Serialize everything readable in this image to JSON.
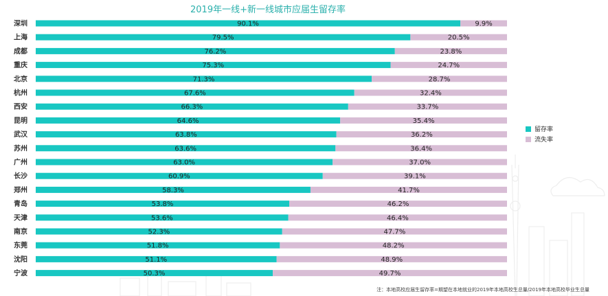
{
  "chart_data": {
    "type": "bar",
    "orientation": "horizontal",
    "stacked": true,
    "title": "2019年一线+新一线城市应届生留存率",
    "categories": [
      "深圳",
      "上海",
      "成都",
      "重庆",
      "北京",
      "杭州",
      "西安",
      "昆明",
      "武汉",
      "苏州",
      "广州",
      "长沙",
      "郑州",
      "青岛",
      "天津",
      "南京",
      "东莞",
      "沈阳",
      "宁波"
    ],
    "series": [
      {
        "name": "留存率",
        "color": "#18c7c2",
        "values": [
          90.1,
          79.5,
          76.2,
          75.3,
          71.3,
          67.6,
          66.3,
          64.6,
          63.8,
          63.6,
          63.0,
          60.9,
          58.3,
          53.8,
          53.6,
          52.3,
          51.8,
          51.1,
          50.3
        ],
        "labels": [
          "90.1%",
          "79.5%",
          "76.2%",
          "75.3%",
          "71.3%",
          "67.6%",
          "66.3%",
          "64.6%",
          "63.8%",
          "63.6%",
          "63.0%",
          "60.9%",
          "58.3%",
          "53.8%",
          "53.6%",
          "52.3%",
          "51.8%",
          "51.1%",
          "50.3%"
        ]
      },
      {
        "name": "流失率",
        "color": "#d8bdd5",
        "values": [
          9.9,
          20.5,
          23.8,
          24.7,
          28.7,
          32.4,
          33.7,
          35.4,
          36.2,
          36.4,
          37.0,
          39.1,
          41.7,
          46.2,
          46.4,
          47.7,
          48.2,
          48.9,
          49.7
        ],
        "labels": [
          "9.9%",
          "20.5%",
          "23.8%",
          "24.7%",
          "28.7%",
          "32.4%",
          "33.7%",
          "35.4%",
          "36.2%",
          "36.4%",
          "37.0%",
          "39.1%",
          "41.7%",
          "46.2%",
          "46.4%",
          "47.7%",
          "48.2%",
          "48.9%",
          "49.7%"
        ]
      }
    ],
    "xlim": [
      0,
      100
    ],
    "grid": false,
    "legend_position": "right",
    "title_color": "#2bb0ac",
    "note": "注：本地高校应届生留存率=期望在本地就业的2019年本地高校生总量/2019年本地高校毕业生总量"
  }
}
